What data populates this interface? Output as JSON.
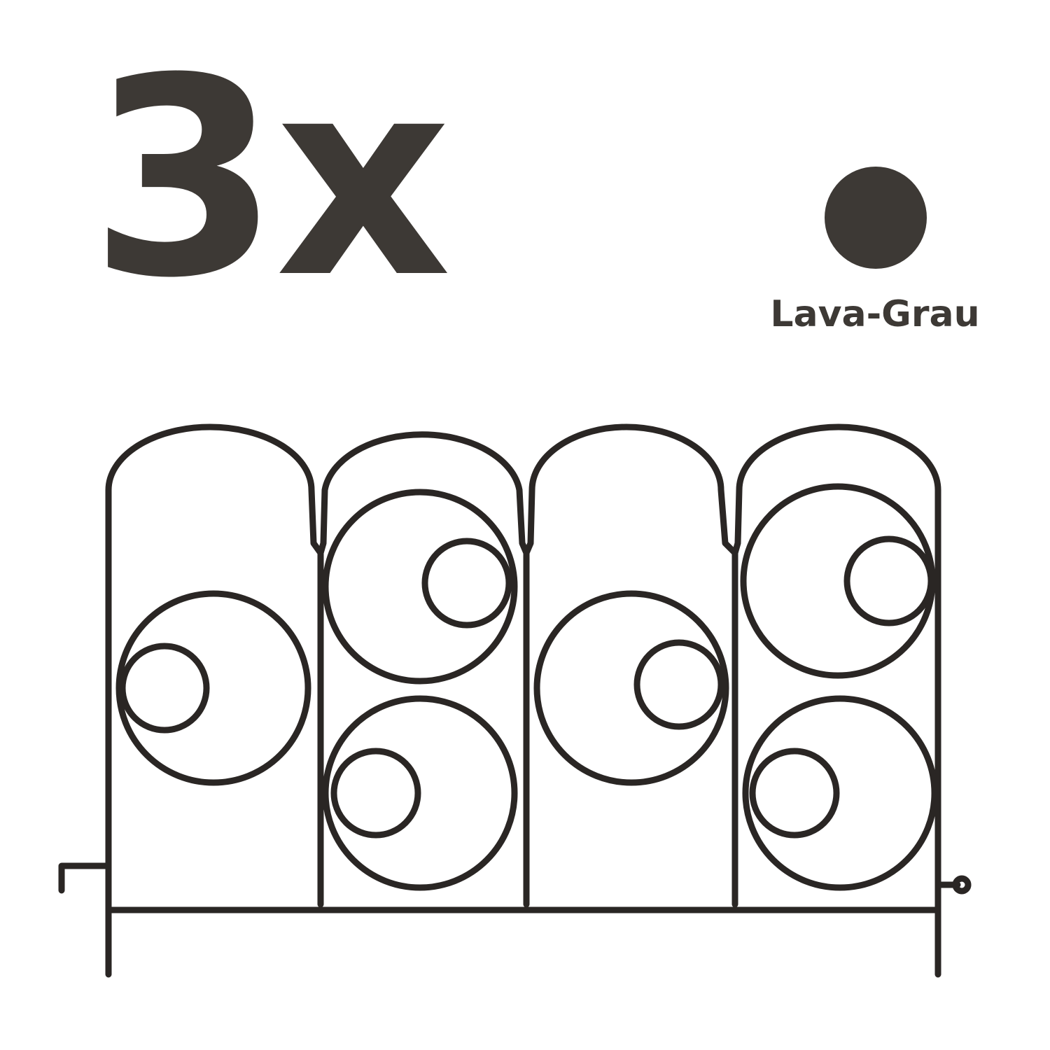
{
  "quantity": "3x",
  "color_option": {
    "name": "Lava-Grau",
    "swatch_hex": "#3d3935"
  },
  "product_image": {
    "subject": "fence-panel",
    "wire_color": "#2a2624"
  }
}
